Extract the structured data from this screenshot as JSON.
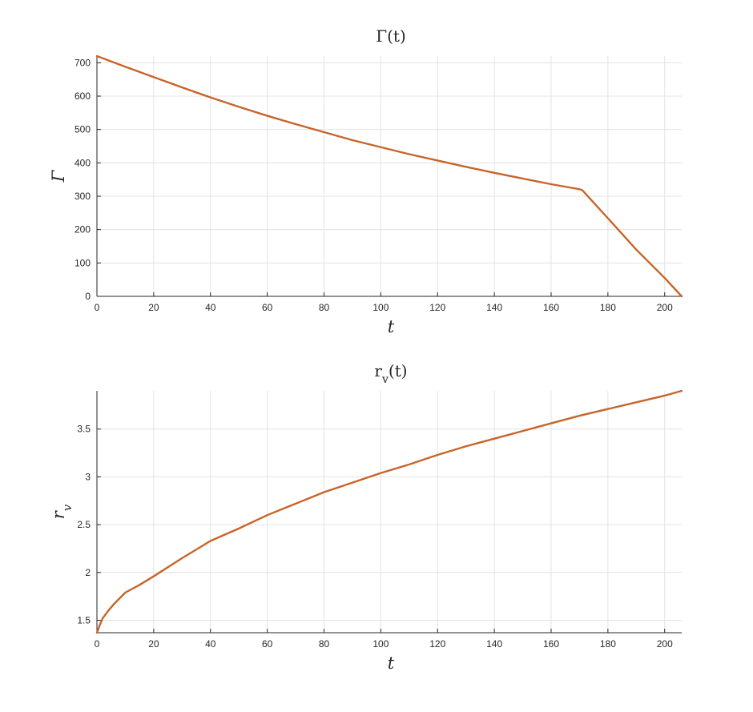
{
  "chart_data": [
    {
      "type": "line",
      "title": "Γ(t)",
      "xlabel": "t",
      "ylabel": "Γ",
      "xlim": [
        0,
        206
      ],
      "ylim": [
        0,
        720
      ],
      "xticks": [
        0,
        20,
        40,
        60,
        80,
        100,
        120,
        140,
        160,
        180,
        200
      ],
      "yticks": [
        0,
        100,
        200,
        300,
        400,
        500,
        600,
        700
      ],
      "xtick_labels": [
        "0",
        "20",
        "40",
        "60",
        "80",
        "100",
        "120",
        "140",
        "160",
        "180",
        "200"
      ],
      "ytick_labels": [
        "0",
        "100",
        "200",
        "300",
        "400",
        "500",
        "600",
        "700"
      ],
      "grid": true,
      "color": "#c8642a",
      "series": [
        {
          "x": [
            0,
            10,
            20,
            30,
            40,
            50,
            60,
            70,
            80,
            90,
            100,
            110,
            120,
            130,
            140,
            150,
            160,
            170,
            171,
            180,
            190,
            200,
            206
          ],
          "y": [
            720,
            688,
            657,
            626,
            596,
            568,
            541,
            516,
            492,
            468,
            447,
            426,
            407,
            388,
            370,
            353,
            336,
            321,
            318,
            234,
            140,
            55,
            0
          ]
        }
      ]
    },
    {
      "type": "line",
      "title": "r_v(t)",
      "xlabel": "t",
      "ylabel": "r_v",
      "xlim": [
        0,
        206
      ],
      "ylim": [
        1.37,
        3.9
      ],
      "xticks": [
        0,
        20,
        40,
        60,
        80,
        100,
        120,
        140,
        160,
        180,
        200
      ],
      "yticks": [
        1.5,
        2,
        2.5,
        3,
        3.5
      ],
      "xtick_labels": [
        "0",
        "20",
        "40",
        "60",
        "80",
        "100",
        "120",
        "140",
        "160",
        "180",
        "200"
      ],
      "ytick_labels": [
        "1.5",
        "2",
        "2.5",
        "3",
        "3.5"
      ],
      "grid": true,
      "color": "#c8642a",
      "series": [
        {
          "x": [
            0,
            1,
            2,
            4,
            6,
            8,
            10,
            15,
            20,
            30,
            40,
            50,
            60,
            70,
            80,
            90,
            100,
            110,
            120,
            130,
            140,
            150,
            160,
            170,
            180,
            190,
            200,
            206
          ],
          "y": [
            1.37,
            1.45,
            1.52,
            1.6,
            1.67,
            1.73,
            1.79,
            1.87,
            1.96,
            2.15,
            2.33,
            2.46,
            2.6,
            2.72,
            2.84,
            2.94,
            3.04,
            3.13,
            3.23,
            3.32,
            3.4,
            3.48,
            3.56,
            3.64,
            3.71,
            3.78,
            3.85,
            3.9
          ]
        }
      ]
    }
  ]
}
